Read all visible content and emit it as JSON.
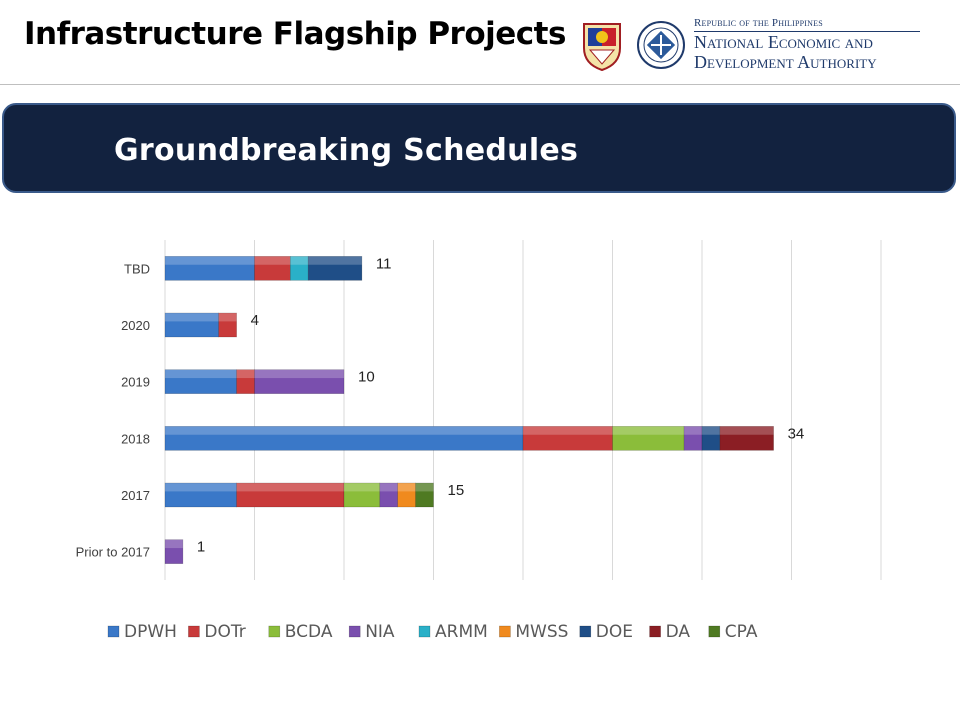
{
  "slide": {
    "title": "Infrastructure Flagship Projects",
    "banner_title": "Groundbreaking Schedules"
  },
  "header": {
    "agency_line1": "Republic of the Philippines",
    "agency_line2": "National Economic and",
    "agency_line3": "Development Authority"
  },
  "chart_data": {
    "type": "bar",
    "orientation": "horizontal",
    "stacked": true,
    "categories": [
      "Prior to 2017",
      "2017",
      "2018",
      "2019",
      "2020",
      "TBD"
    ],
    "series": [
      {
        "name": "DPWH",
        "color": "#3a78c8",
        "values": [
          0,
          4,
          20,
          4,
          3,
          5
        ]
      },
      {
        "name": "DOTr",
        "color": "#c83a3a",
        "values": [
          0,
          6,
          5,
          1,
          1,
          2
        ]
      },
      {
        "name": "BCDA",
        "color": "#8bbd3a",
        "values": [
          0,
          2,
          4,
          0,
          0,
          0
        ]
      },
      {
        "name": "NIA",
        "color": "#7a4fae",
        "values": [
          1,
          1,
          1,
          5,
          0,
          0
        ]
      },
      {
        "name": "ARMM",
        "color": "#2ab0c8",
        "values": [
          0,
          0,
          0,
          0,
          0,
          1
        ]
      },
      {
        "name": "MWSS",
        "color": "#f08a1e",
        "values": [
          0,
          1,
          0,
          0,
          0,
          0
        ]
      },
      {
        "name": "DOE",
        "color": "#1f4e87",
        "values": [
          0,
          0,
          1,
          0,
          0,
          3
        ]
      },
      {
        "name": "DA",
        "color": "#8b1e24",
        "values": [
          0,
          0,
          3,
          0,
          0,
          0
        ]
      },
      {
        "name": "CPA",
        "color": "#4f7a22",
        "values": [
          0,
          1,
          0,
          0,
          0,
          0
        ]
      }
    ],
    "totals": [
      1,
      15,
      34,
      10,
      4,
      11
    ],
    "xlim": [
      0,
      40
    ],
    "grid": true,
    "legend_position": "bottom"
  }
}
